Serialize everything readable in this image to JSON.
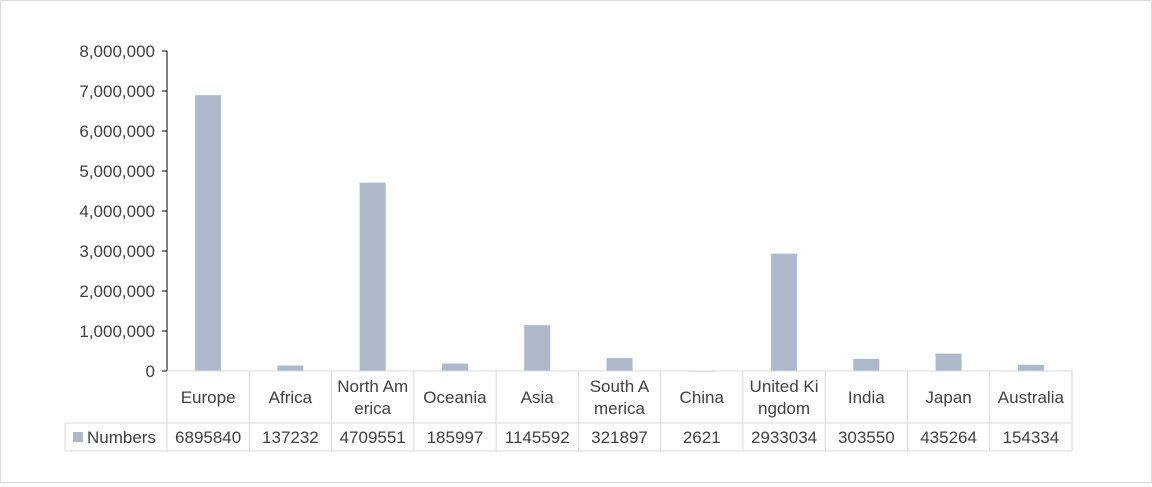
{
  "chart_data": {
    "type": "bar",
    "categories": [
      [
        "Europe"
      ],
      [
        "Africa"
      ],
      [
        "North Am",
        "erica"
      ],
      [
        "Oceania"
      ],
      [
        "Asia"
      ],
      [
        "South A",
        "merica"
      ],
      [
        "China"
      ],
      [
        "United Ki",
        "ngdom"
      ],
      [
        "India"
      ],
      [
        "Japan"
      ],
      [
        "Australia"
      ]
    ],
    "series": [
      {
        "name": "Numbers",
        "values": [
          6895840,
          137232,
          4709551,
          185997,
          1145592,
          321897,
          2621,
          2933034,
          303550,
          435264,
          154334
        ]
      }
    ],
    "ylim": [
      0,
      8000000
    ],
    "yticks": [
      "0",
      "1,000,000",
      "2,000,000",
      "3,000,000",
      "4,000,000",
      "5,000,000",
      "6,000,000",
      "7,000,000",
      "8,000,000"
    ],
    "data_table": true,
    "colors": {
      "bar": "#adb9ca",
      "axis": "#000000",
      "grid": "#d9d9d9",
      "text": "#404040"
    }
  }
}
